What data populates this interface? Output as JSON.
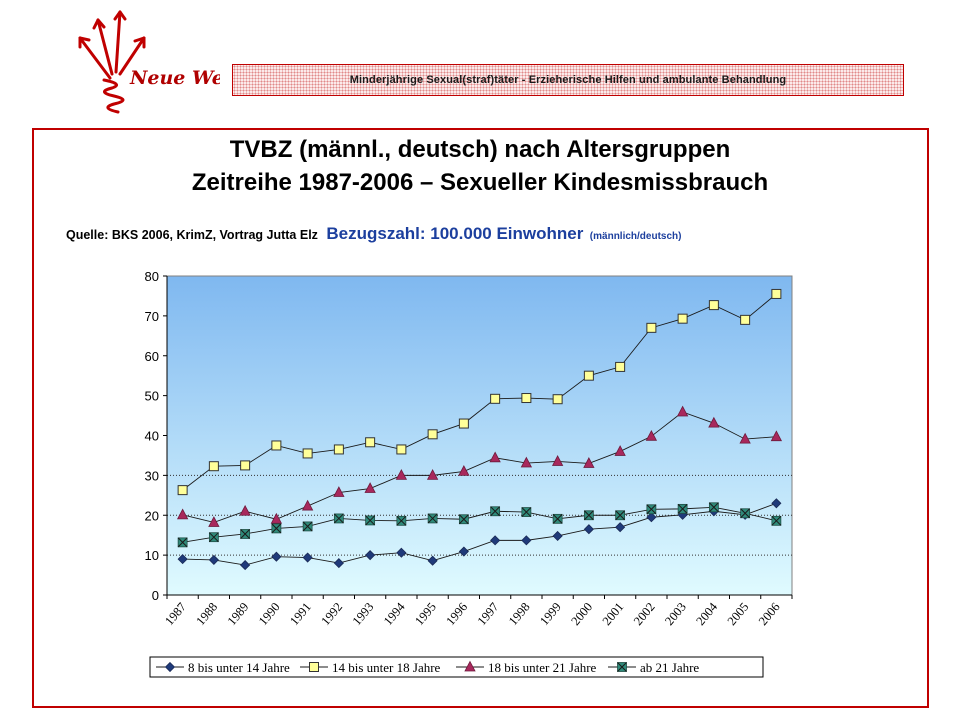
{
  "logo": {
    "text": "Neue Wege"
  },
  "header": {
    "text": "Minderjährige Sexual(straf)täter - Erzieherische Hilfen und ambulante Behandlung"
  },
  "title": {
    "line1": "TVBZ (männl., deutsch) nach Altersgruppen",
    "line2": "Zeitreihe 1987-2006 – Sexueller Kindesmissbrauch"
  },
  "source": {
    "text": "Quelle: BKS 2006, KrimZ, Vortrag Jutta Elz",
    "reference": "Bezugszahl: 100.000 Einwohner",
    "reference_sub": "(männlich/deutsch)"
  },
  "colors": {
    "frame": "#c00000",
    "reference_text": "#1c3f9e",
    "plot_top": "#7fb8f0",
    "plot_bottom": "#e0fbff"
  },
  "chart_data": {
    "type": "line",
    "categories": [
      "1987",
      "1988",
      "1989",
      "1990",
      "1991",
      "1992",
      "1993",
      "1994",
      "1995",
      "1996",
      "1997",
      "1998",
      "1999",
      "2000",
      "2001",
      "2002",
      "2003",
      "2004",
      "2005",
      "2006"
    ],
    "ylim": [
      0,
      80
    ],
    "yticks": [
      0,
      10,
      20,
      30,
      40,
      50,
      60,
      70,
      80
    ],
    "grid": "dotted horizontal at 10, 20, 30",
    "legend_position": "bottom",
    "series": [
      {
        "name": "8 bis unter 14 Jahre",
        "marker": "diamond",
        "fill": "#1f3a7a",
        "values": [
          9,
          8.8,
          7.5,
          9.6,
          9.4,
          8.0,
          10.0,
          10.6,
          8.6,
          10.9,
          13.7,
          13.7,
          14.8,
          16.5,
          17.0,
          19.5,
          20.1,
          21.0,
          20.1,
          23.0
        ]
      },
      {
        "name": "14 bis unter 18 Jahre",
        "marker": "square",
        "fill": "#ffff99",
        "values": [
          26.3,
          32.3,
          32.5,
          37.5,
          35.5,
          36.5,
          38.3,
          36.5,
          40.3,
          43.0,
          49.2,
          49.4,
          49.1,
          55.0,
          57.2,
          67.0,
          69.3,
          72.7,
          69.0,
          75.5
        ]
      },
      {
        "name": "18 bis unter 21 Jahre",
        "marker": "triangle",
        "fill": "#a8285c",
        "values": [
          20.1,
          18.2,
          21.0,
          19.0,
          22.3,
          25.7,
          26.7,
          30.0,
          30.0,
          31.0,
          34.4,
          33.1,
          33.5,
          33.0,
          36.0,
          39.8,
          45.9,
          43.1,
          39.1,
          39.7
        ]
      },
      {
        "name": "ab 21 Jahre",
        "marker": "xsquare",
        "fill": "#2f8a7a",
        "values": [
          13.2,
          14.5,
          15.3,
          16.7,
          17.2,
          19.2,
          18.7,
          18.6,
          19.2,
          19.0,
          21.0,
          20.8,
          19.1,
          20.0,
          20.0,
          21.5,
          21.6,
          22.0,
          20.5,
          18.6
        ]
      }
    ]
  }
}
